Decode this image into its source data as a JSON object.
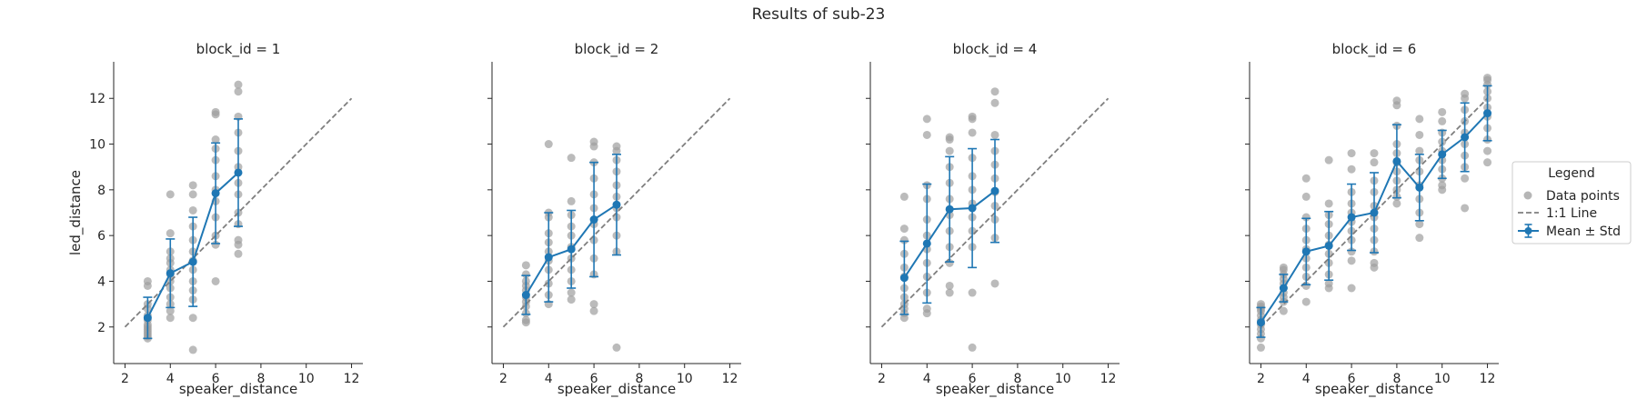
{
  "figure": {
    "title": "Results of sub-23"
  },
  "chart_data": {
    "type": "scatter",
    "shared": {
      "xlabel": "speaker_distance",
      "ylabel": "led_distance",
      "xlim": [
        1.5,
        12.5
      ],
      "ylim": [
        0.4,
        13.6
      ],
      "xticks": [
        2,
        4,
        6,
        8,
        10,
        12
      ],
      "yticks": [
        2,
        4,
        6,
        8,
        10,
        12
      ],
      "grid": false
    },
    "colors": {
      "points": "#9e9e9e",
      "mean": "#1f77b4",
      "identity": "#7f7f7f"
    },
    "legend": {
      "title": "Legend",
      "position": "right",
      "entries": [
        "Data points",
        "1:1 Line",
        "Mean ± Std"
      ]
    },
    "panels": [
      {
        "title": "block_id = 1",
        "identity": [
          [
            2,
            2
          ],
          [
            12,
            12
          ]
        ],
        "mean": [
          {
            "x": 3,
            "y": 2.4,
            "sd": 0.9
          },
          {
            "x": 4,
            "y": 4.35,
            "sd": 1.5
          },
          {
            "x": 5,
            "y": 4.85,
            "sd": 1.95
          },
          {
            "x": 6,
            "y": 7.85,
            "sd": 2.2
          },
          {
            "x": 7,
            "y": 8.75,
            "sd": 2.35
          }
        ],
        "points": [
          {
            "x": 3,
            "y": [
              1.5,
              1.6,
              1.7,
              1.8,
              1.9,
              2.0,
              2.1,
              2.3,
              2.5,
              2.8,
              3.0,
              3.8,
              4.0
            ]
          },
          {
            "x": 4,
            "y": [
              2.4,
              2.7,
              3.0,
              3.3,
              3.7,
              4.0,
              4.3,
              4.5,
              4.8,
              5.0,
              5.3,
              6.1,
              7.8
            ]
          },
          {
            "x": 5,
            "y": [
              1.0,
              2.4,
              3.2,
              3.6,
              4.0,
              4.5,
              4.9,
              5.3,
              5.8,
              6.4,
              7.1,
              7.8,
              8.2
            ]
          },
          {
            "x": 6,
            "y": [
              4.0,
              5.6,
              6.0,
              6.8,
              7.5,
              8.0,
              8.6,
              9.3,
              9.8,
              10.2,
              11.3,
              11.4
            ]
          },
          {
            "x": 7,
            "y": [
              5.2,
              5.6,
              5.8,
              6.5,
              7.0,
              7.8,
              8.3,
              9.0,
              9.7,
              10.5,
              11.2,
              12.3,
              12.6
            ]
          }
        ]
      },
      {
        "title": "block_id = 2",
        "identity": [
          [
            2,
            2
          ],
          [
            12,
            12
          ]
        ],
        "mean": [
          {
            "x": 3,
            "y": 3.4,
            "sd": 0.85
          },
          {
            "x": 4,
            "y": 5.05,
            "sd": 1.95
          },
          {
            "x": 5,
            "y": 5.4,
            "sd": 1.7
          },
          {
            "x": 6,
            "y": 6.7,
            "sd": 2.5
          },
          {
            "x": 7,
            "y": 7.35,
            "sd": 2.2
          }
        ],
        "points": [
          {
            "x": 3,
            "y": [
              2.2,
              2.3,
              2.6,
              2.9,
              3.1,
              3.3,
              3.6,
              3.8,
              4.0,
              4.3,
              4.7
            ]
          },
          {
            "x": 4,
            "y": [
              3.0,
              3.4,
              3.9,
              4.5,
              4.9,
              5.3,
              5.7,
              6.1,
              6.8,
              7.0,
              10.0
            ]
          },
          {
            "x": 5,
            "y": [
              3.2,
              3.5,
              4.0,
              4.5,
              5.0,
              5.5,
              6.0,
              6.4,
              6.9,
              7.5,
              9.4
            ]
          },
          {
            "x": 6,
            "y": [
              2.7,
              3.0,
              4.3,
              5.0,
              5.8,
              6.5,
              7.2,
              7.8,
              8.5,
              9.2,
              9.9,
              10.1
            ]
          },
          {
            "x": 7,
            "y": [
              1.1,
              5.3,
              6.0,
              6.8,
              7.2,
              7.7,
              8.2,
              8.8,
              9.3,
              9.7,
              9.9
            ]
          }
        ]
      },
      {
        "title": "block_id = 4",
        "identity": [
          [
            2,
            2
          ],
          [
            12,
            12
          ]
        ],
        "mean": [
          {
            "x": 3,
            "y": 4.15,
            "sd": 1.6
          },
          {
            "x": 4,
            "y": 5.65,
            "sd": 2.6
          },
          {
            "x": 5,
            "y": 7.15,
            "sd": 2.3
          },
          {
            "x": 6,
            "y": 7.2,
            "sd": 2.6
          },
          {
            "x": 7,
            "y": 7.95,
            "sd": 2.25
          }
        ],
        "points": [
          {
            "x": 3,
            "y": [
              2.4,
              2.6,
              2.8,
              3.0,
              3.3,
              3.7,
              4.2,
              4.6,
              5.2,
              5.8,
              6.3,
              7.7
            ]
          },
          {
            "x": 4,
            "y": [
              2.6,
              2.8,
              3.5,
              4.2,
              4.8,
              5.4,
              6.0,
              6.7,
              7.6,
              8.2,
              10.4,
              11.1
            ]
          },
          {
            "x": 5,
            "y": [
              3.5,
              3.8,
              4.8,
              5.5,
              6.2,
              6.9,
              7.6,
              8.3,
              9.0,
              9.7,
              10.2,
              10.3
            ]
          },
          {
            "x": 6,
            "y": [
              1.1,
              3.5,
              5.5,
              6.2,
              6.8,
              7.4,
              8.0,
              8.6,
              9.4,
              10.5,
              11.1,
              11.2
            ]
          },
          {
            "x": 7,
            "y": [
              3.9,
              5.9,
              6.7,
              7.3,
              7.9,
              8.5,
              9.1,
              9.7,
              10.4,
              11.8,
              12.3
            ]
          }
        ]
      },
      {
        "title": "block_id = 6",
        "identity": [
          [
            2,
            2
          ],
          [
            12,
            12
          ]
        ],
        "mean": [
          {
            "x": 2,
            "y": 2.2,
            "sd": 0.65
          },
          {
            "x": 3,
            "y": 3.7,
            "sd": 0.6
          },
          {
            "x": 4,
            "y": 5.3,
            "sd": 1.45
          },
          {
            "x": 5,
            "y": 5.55,
            "sd": 1.5
          },
          {
            "x": 6,
            "y": 6.8,
            "sd": 1.45
          },
          {
            "x": 7,
            "y": 7.0,
            "sd": 1.75
          },
          {
            "x": 8,
            "y": 9.25,
            "sd": 1.6
          },
          {
            "x": 9,
            "y": 8.1,
            "sd": 1.45
          },
          {
            "x": 10,
            "y": 9.55,
            "sd": 1.05
          },
          {
            "x": 11,
            "y": 10.3,
            "sd": 1.5
          },
          {
            "x": 12,
            "y": 11.35,
            "sd": 1.2
          }
        ],
        "points": [
          {
            "x": 2,
            "y": [
              1.1,
              1.5,
              1.7,
              1.9,
              2.1,
              2.3,
              2.5,
              2.7,
              2.8,
              2.9,
              3.0
            ]
          },
          {
            "x": 3,
            "y": [
              2.7,
              3.1,
              3.3,
              3.5,
              3.7,
              3.9,
              4.1,
              4.3,
              4.5,
              4.6
            ]
          },
          {
            "x": 4,
            "y": [
              3.1,
              3.8,
              4.2,
              4.6,
              5.0,
              5.4,
              5.8,
              6.3,
              6.8,
              7.7,
              8.5
            ]
          },
          {
            "x": 5,
            "y": [
              3.7,
              3.9,
              4.3,
              4.8,
              5.2,
              5.6,
              6.0,
              6.5,
              6.9,
              7.4,
              9.3
            ]
          },
          {
            "x": 6,
            "y": [
              3.7,
              4.9,
              5.3,
              5.8,
              6.2,
              6.6,
              7.0,
              7.4,
              7.9,
              8.9,
              9.6
            ]
          },
          {
            "x": 7,
            "y": [
              4.6,
              4.8,
              5.3,
              5.8,
              6.3,
              6.8,
              7.3,
              7.9,
              8.4,
              9.2,
              9.6
            ]
          },
          {
            "x": 8,
            "y": [
              7.4,
              7.7,
              8.0,
              8.4,
              8.8,
              9.2,
              9.6,
              10.0,
              10.8,
              11.7,
              11.9
            ]
          },
          {
            "x": 9,
            "y": [
              5.9,
              6.5,
              7.0,
              7.6,
              8.2,
              8.8,
              9.3,
              9.7,
              10.4,
              11.1
            ]
          },
          {
            "x": 10,
            "y": [
              8.0,
              8.2,
              8.5,
              8.9,
              9.3,
              9.7,
              10.1,
              10.5,
              11.0,
              11.4
            ]
          },
          {
            "x": 11,
            "y": [
              7.2,
              8.5,
              9.0,
              9.5,
              10.0,
              10.5,
              11.0,
              11.5,
              12.0,
              12.2
            ]
          },
          {
            "x": 12,
            "y": [
              9.2,
              9.7,
              10.2,
              10.7,
              11.2,
              11.6,
              12.0,
              12.3,
              12.6,
              12.8,
              12.9
            ]
          }
        ]
      }
    ]
  }
}
